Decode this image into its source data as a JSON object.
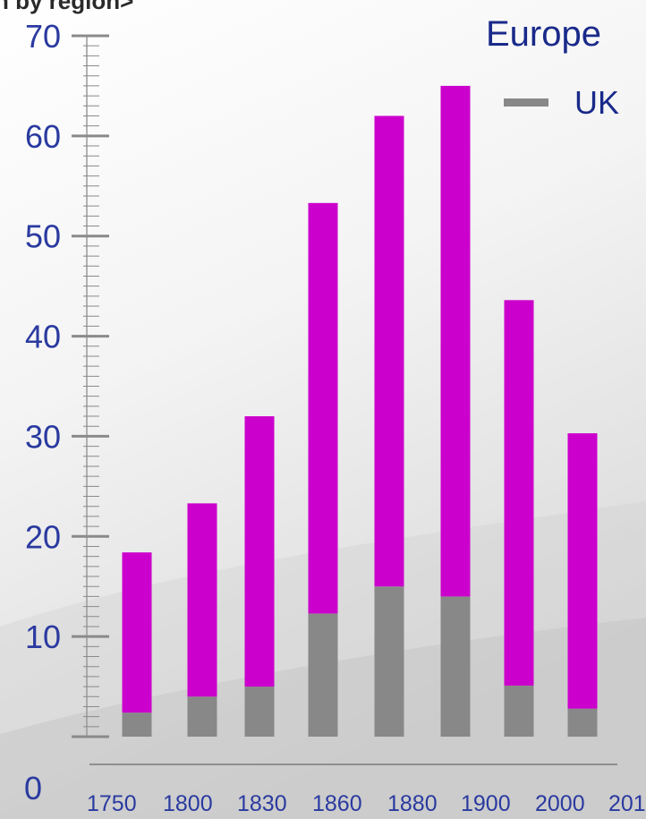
{
  "chart_data": {
    "type": "bar",
    "stacked": true,
    "clipped_title": "n by region>",
    "legend_title": "Europe",
    "categories": [
      "1750",
      "1800",
      "1830",
      "1860",
      "1880",
      "1900",
      "2000",
      "201"
    ],
    "series": [
      {
        "name": "UK",
        "color": "#888888",
        "values": [
          2.4,
          4.0,
          5.0,
          12.3,
          15.0,
          14.0,
          5.1,
          2.8
        ]
      },
      {
        "name": "",
        "color": "#cc00cc",
        "values": [
          16.0,
          19.3,
          27.0,
          41.0,
          47.0,
          51.0,
          38.5,
          27.5
        ]
      }
    ],
    "legend": [
      {
        "name": "UK",
        "color": "#888888"
      }
    ],
    "y_axis": {
      "ticks": [
        0,
        10,
        20,
        30,
        40,
        50,
        60,
        70
      ],
      "ylim": [
        0,
        70
      ]
    },
    "grid": false,
    "legend_placement": "top-right"
  }
}
